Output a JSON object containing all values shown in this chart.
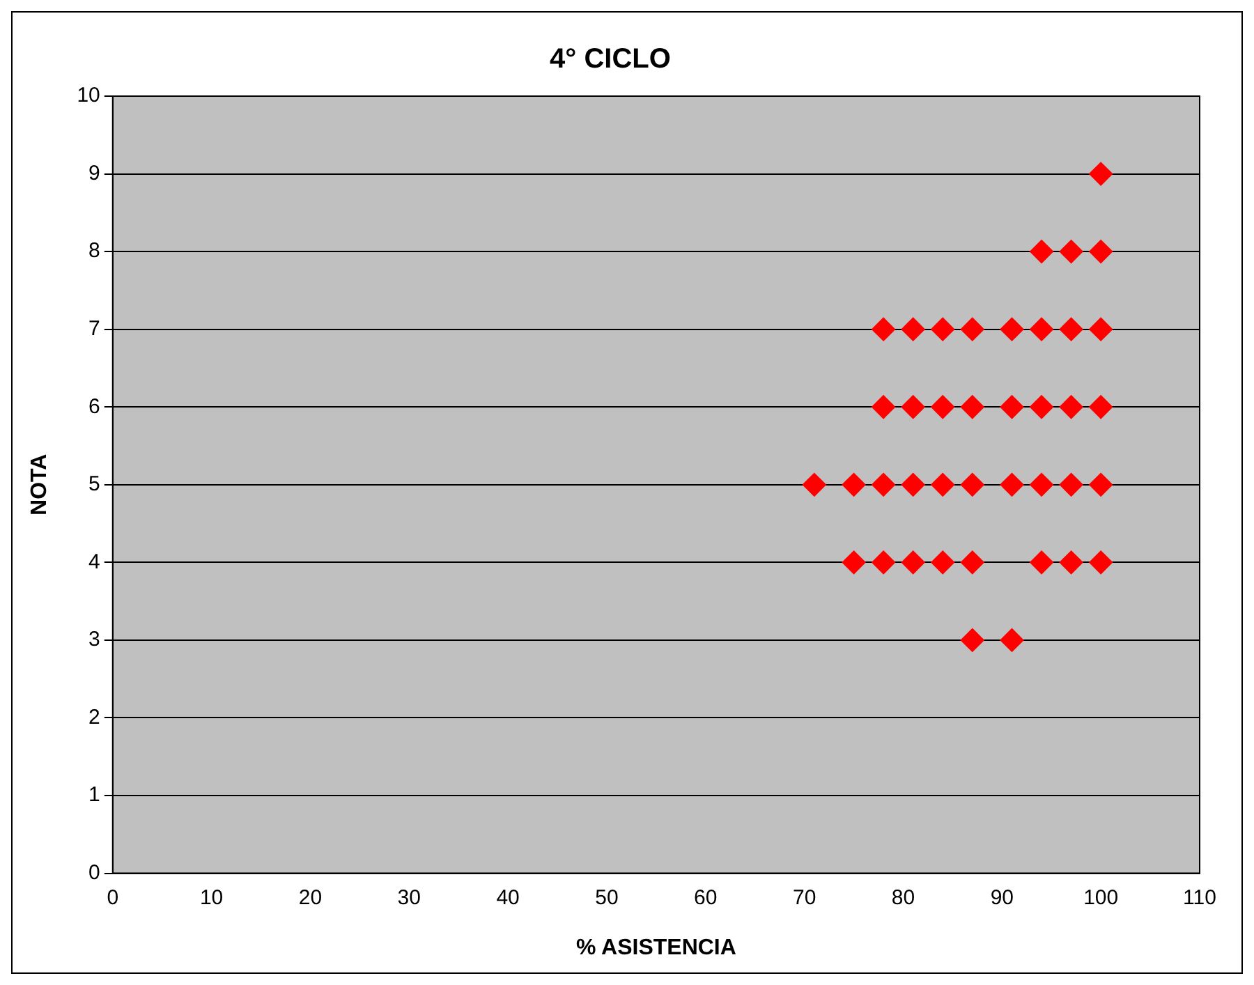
{
  "chart_data": {
    "type": "scatter",
    "title": "4° CICLO",
    "xlabel": "% ASISTENCIA",
    "ylabel": "NOTA",
    "series": [
      {
        "color": "#ff0000",
        "x": [
          100,
          94,
          97,
          100,
          78,
          81,
          84,
          87,
          91,
          94,
          97,
          100,
          78,
          81,
          84,
          87,
          91,
          94,
          97,
          100,
          71,
          75,
          78,
          81,
          84,
          87,
          91,
          94,
          97,
          100,
          75,
          78,
          81,
          84,
          87,
          94,
          97,
          100,
          87,
          91
        ],
        "values": [
          9,
          8,
          8,
          8,
          7,
          7,
          7,
          7,
          7,
          7,
          7,
          7,
          6,
          6,
          6,
          6,
          6,
          6,
          6,
          6,
          5,
          5,
          5,
          5,
          5,
          5,
          5,
          5,
          5,
          5,
          4,
          4,
          4,
          4,
          4,
          4,
          4,
          4,
          3,
          3
        ]
      }
    ],
    "xlim": [
      0,
      110
    ],
    "xticks": [
      0,
      10,
      20,
      30,
      40,
      50,
      60,
      70,
      80,
      90,
      100,
      110
    ],
    "ylim": [
      0,
      10
    ],
    "yticks": [
      0,
      1,
      2,
      3,
      4,
      5,
      6,
      7,
      8,
      9,
      10
    ],
    "grid": "y",
    "legend": false,
    "marker": "diamond"
  }
}
